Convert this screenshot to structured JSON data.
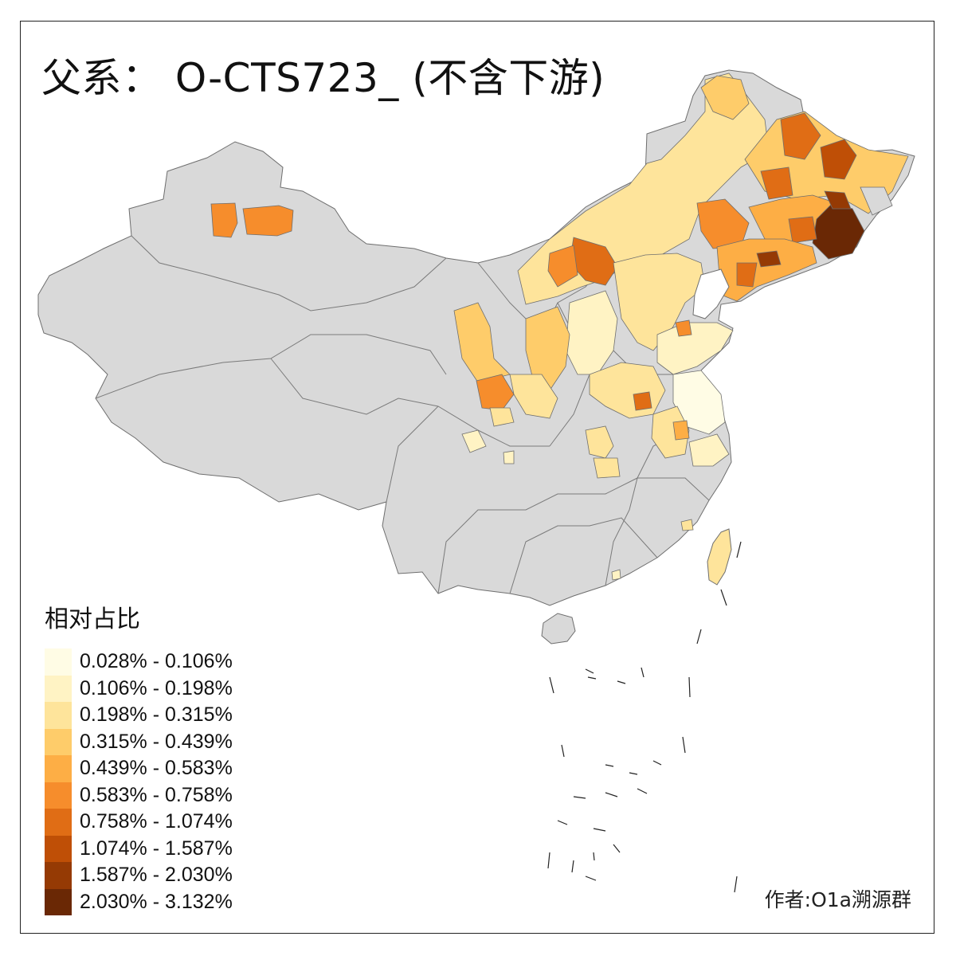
{
  "title": "父系： O-CTS723_ (不含下游)",
  "legend": {
    "title": "相对占比",
    "items": [
      {
        "label": "0.028% - 0.106%",
        "color": "#FFFCE5"
      },
      {
        "label": "0.106% - 0.198%",
        "color": "#FFF3C4"
      },
      {
        "label": "0.198% - 0.315%",
        "color": "#FEE49B"
      },
      {
        "label": "0.315% - 0.439%",
        "color": "#FECC6A"
      },
      {
        "label": "0.439% - 0.583%",
        "color": "#FDAE45"
      },
      {
        "label": "0.583% - 0.758%",
        "color": "#F68D2C"
      },
      {
        "label": "0.758% - 1.074%",
        "color": "#E06D15"
      },
      {
        "label": "1.074% - 1.587%",
        "color": "#BF4F06"
      },
      {
        "label": "1.587% - 2.030%",
        "color": "#953A04"
      },
      {
        "label": "2.030% - 3.132%",
        "color": "#6A2805"
      }
    ]
  },
  "author": "作者:O1a溯源群",
  "colors": {
    "no_data": "#D9D9D9",
    "border": "#6E6E6E"
  }
}
